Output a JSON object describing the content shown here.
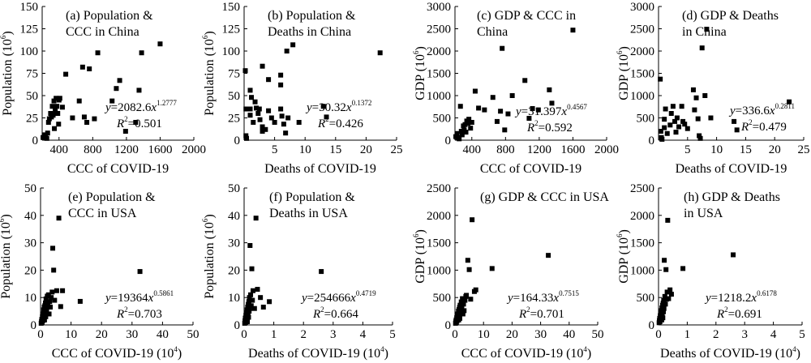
{
  "chart_data": [
    {
      "type": "scatter",
      "title_lines": [
        "(a) Population &",
        "CCC in China"
      ],
      "xlabel": "CCC of COVID-19",
      "ylabel_main": "Population (10",
      "ylabel_exp": "6",
      "ylabel_tail": ")",
      "xlim": [
        200,
        2000
      ],
      "ylim": [
        0,
        150
      ],
      "xticks": [
        400,
        800,
        1200,
        1600,
        2000
      ],
      "yticks": [
        0,
        25,
        50,
        75,
        100,
        125,
        150
      ],
      "equation": {
        "lhs": "y",
        "coef": "=2082.6",
        "var": "x",
        "exp": "1.2777"
      },
      "r2": {
        "label": "R",
        "exp": "2",
        "value": "=0.501"
      },
      "points": [
        [
          210,
          3
        ],
        [
          225,
          6
        ],
        [
          240,
          5
        ],
        [
          255,
          2
        ],
        [
          265,
          8
        ],
        [
          275,
          20
        ],
        [
          285,
          24
        ],
        [
          300,
          30
        ],
        [
          310,
          26
        ],
        [
          320,
          38
        ],
        [
          330,
          28
        ],
        [
          340,
          44
        ],
        [
          345,
          13
        ],
        [
          355,
          33
        ],
        [
          365,
          47
        ],
        [
          375,
          38
        ],
        [
          385,
          30
        ],
        [
          395,
          18
        ],
        [
          400,
          45
        ],
        [
          410,
          47
        ],
        [
          440,
          37
        ],
        [
          480,
          74
        ],
        [
          560,
          25
        ],
        [
          640,
          44
        ],
        [
          680,
          82
        ],
        [
          700,
          26
        ],
        [
          730,
          20
        ],
        [
          760,
          80
        ],
        [
          820,
          24
        ],
        [
          860,
          98
        ],
        [
          1030,
          44
        ],
        [
          1080,
          58
        ],
        [
          1120,
          67
        ],
        [
          1190,
          10
        ],
        [
          1310,
          20
        ],
        [
          1350,
          56
        ],
        [
          1380,
          98
        ],
        [
          1600,
          108
        ]
      ]
    },
    {
      "type": "scatter",
      "title_lines": [
        "(b) Population &",
        "Deaths in China"
      ],
      "xlabel": "Deaths of COVID-19",
      "ylabel_main": "Population (10",
      "ylabel_exp": "6",
      "ylabel_tail": ")",
      "xlim": [
        0,
        25
      ],
      "ylim": [
        0,
        150
      ],
      "xticks": [
        5,
        10,
        15,
        20,
        25
      ],
      "yticks": [
        0,
        25,
        50,
        75,
        100,
        125,
        150
      ],
      "equation": {
        "lhs": "y",
        "coef": "=30.32",
        "var": "x",
        "exp": "0.1372"
      },
      "r2": {
        "label": "R",
        "exp": "2",
        "value": "=0.426"
      },
      "points": [
        [
          0.2,
          78
        ],
        [
          0.3,
          35
        ],
        [
          0.3,
          5
        ],
        [
          0.4,
          2
        ],
        [
          1,
          56
        ],
        [
          1,
          35
        ],
        [
          1,
          28
        ],
        [
          1.2,
          48
        ],
        [
          1.5,
          20
        ],
        [
          1.8,
          43
        ],
        [
          2,
          36
        ],
        [
          2.3,
          30
        ],
        [
          2.5,
          35
        ],
        [
          2.6,
          23
        ],
        [
          3,
          83
        ],
        [
          3,
          15
        ],
        [
          3,
          10
        ],
        [
          3.5,
          12
        ],
        [
          4,
          68
        ],
        [
          4,
          33
        ],
        [
          4.5,
          25
        ],
        [
          5,
          20
        ],
        [
          6,
          73
        ],
        [
          6,
          62
        ],
        [
          6,
          35
        ],
        [
          6.2,
          27
        ],
        [
          6.5,
          18
        ],
        [
          6.8,
          8
        ],
        [
          7,
          100
        ],
        [
          7.2,
          25
        ],
        [
          8,
          107
        ],
        [
          9,
          20
        ],
        [
          13,
          38
        ],
        [
          13.5,
          26
        ],
        [
          22.3,
          98
        ]
      ]
    },
    {
      "type": "scatter",
      "title_lines": [
        "(c) GDP & CCC in",
        "China"
      ],
      "xlabel": "CCC of COVID-19",
      "ylabel_main": "GDP (10",
      "ylabel_exp": "6",
      "ylabel_tail": ")",
      "xlim": [
        200,
        2000
      ],
      "ylim": [
        0,
        3000
      ],
      "xticks": [
        400,
        800,
        1200,
        1600,
        2000
      ],
      "yticks": [
        0,
        500,
        1000,
        1500,
        2000,
        2500,
        3000
      ],
      "equation": {
        "lhs": "y",
        "coef": "=31.397",
        "var": "x",
        "exp": "0.4567"
      },
      "r2": {
        "label": "R",
        "exp": "2",
        "value": "=0.592"
      },
      "points": [
        [
          210,
          80
        ],
        [
          225,
          150
        ],
        [
          235,
          60
        ],
        [
          250,
          30
        ],
        [
          265,
          760
        ],
        [
          275,
          200
        ],
        [
          285,
          120
        ],
        [
          300,
          320
        ],
        [
          310,
          230
        ],
        [
          320,
          350
        ],
        [
          330,
          180
        ],
        [
          340,
          430
        ],
        [
          355,
          380
        ],
        [
          365,
          470
        ],
        [
          385,
          270
        ],
        [
          400,
          400
        ],
        [
          440,
          1100
        ],
        [
          480,
          720
        ],
        [
          550,
          680
        ],
        [
          650,
          960
        ],
        [
          700,
          420
        ],
        [
          740,
          650
        ],
        [
          760,
          2060
        ],
        [
          790,
          230
        ],
        [
          830,
          590
        ],
        [
          880,
          1000
        ],
        [
          1030,
          1340
        ],
        [
          1080,
          490
        ],
        [
          1120,
          710
        ],
        [
          1190,
          680
        ],
        [
          1320,
          1130
        ],
        [
          1350,
          830
        ],
        [
          1600,
          2470
        ]
      ]
    },
    {
      "type": "scatter",
      "title_lines": [
        "(d) GDP & Deaths",
        "in China"
      ],
      "xlabel": "Deaths of COVID-19",
      "ylabel_main": "GDP (10",
      "ylabel_exp": "6",
      "ylabel_tail": ")",
      "xlim": [
        0,
        25
      ],
      "ylim": [
        0,
        3000
      ],
      "xticks": [
        5,
        10,
        15,
        20,
        25
      ],
      "yticks": [
        0,
        500,
        1000,
        1500,
        2000,
        2500,
        3000
      ],
      "equation": {
        "lhs": "y",
        "coef": "=336.6",
        "var": "x",
        "exp": "0.2811"
      },
      "r2": {
        "label": "R",
        "exp": "2",
        "value": "=0.479"
      },
      "points": [
        [
          0.3,
          1370
        ],
        [
          0.4,
          200
        ],
        [
          0.5,
          60
        ],
        [
          0.6,
          20
        ],
        [
          1,
          470
        ],
        [
          1,
          280
        ],
        [
          1.2,
          700
        ],
        [
          1.5,
          150
        ],
        [
          2,
          340
        ],
        [
          2.2,
          600
        ],
        [
          2.5,
          760
        ],
        [
          2.8,
          420
        ],
        [
          3,
          180
        ],
        [
          3.2,
          500
        ],
        [
          3.5,
          300
        ],
        [
          4,
          760
        ],
        [
          4.2,
          420
        ],
        [
          4.5,
          360
        ],
        [
          5,
          260
        ],
        [
          6,
          1130
        ],
        [
          6.2,
          680
        ],
        [
          6.5,
          950
        ],
        [
          6.8,
          480
        ],
        [
          7,
          100
        ],
        [
          7.2,
          40
        ],
        [
          7.5,
          2070
        ],
        [
          8,
          1000
        ],
        [
          8.3,
          2490
        ],
        [
          9,
          500
        ],
        [
          13,
          420
        ],
        [
          13.5,
          230
        ],
        [
          22.5,
          860
        ]
      ]
    },
    {
      "type": "scatter",
      "title_lines": [
        "(e) Population &",
        "CCC in USA"
      ],
      "xlabel_main": "CCC of COVID-19 (10",
      "xlabel_exp": "4",
      "xlabel_tail": ")",
      "ylabel_main": "Population (10",
      "ylabel_exp": "6",
      "ylabel_tail": ")",
      "xlim": [
        0,
        50
      ],
      "ylim": [
        0,
        50
      ],
      "xticks": [
        0,
        10,
        20,
        30,
        40,
        50
      ],
      "yticks": [
        0,
        10,
        20,
        30,
        40,
        50
      ],
      "equation": {
        "lhs": "y",
        "coef": "=19364",
        "var": "x",
        "exp": "0.5861"
      },
      "r2": {
        "label": "R",
        "exp": "2",
        "value": "=0.703"
      },
      "points": [
        [
          0.2,
          0.6
        ],
        [
          0.3,
          1.2
        ],
        [
          0.4,
          2
        ],
        [
          0.5,
          0.8
        ],
        [
          0.6,
          3
        ],
        [
          0.7,
          1.5
        ],
        [
          0.8,
          4
        ],
        [
          0.9,
          2.5
        ],
        [
          1,
          5.5
        ],
        [
          1.1,
          3.2
        ],
        [
          1.2,
          6.5
        ],
        [
          1.3,
          1.8
        ],
        [
          1.4,
          7
        ],
        [
          1.5,
          4.5
        ],
        [
          1.6,
          8
        ],
        [
          1.7,
          3
        ],
        [
          1.8,
          9.5
        ],
        [
          1.9,
          6
        ],
        [
          2,
          5
        ],
        [
          2.2,
          10.5
        ],
        [
          2.4,
          7.5
        ],
        [
          2.6,
          11
        ],
        [
          2.8,
          4
        ],
        [
          3,
          8.5
        ],
        [
          3.2,
          6.5
        ],
        [
          3.5,
          10
        ],
        [
          3.8,
          12
        ],
        [
          4,
          28
        ],
        [
          4.3,
          20
        ],
        [
          4.6,
          9
        ],
        [
          5.3,
          12.5
        ],
        [
          6,
          39
        ],
        [
          6.6,
          6.7
        ],
        [
          7.2,
          12.5
        ],
        [
          13,
          8.6
        ],
        [
          32.6,
          19.5
        ]
      ]
    },
    {
      "type": "scatter",
      "title_lines": [
        "(f) Population &",
        "Deaths in USA"
      ],
      "xlabel_main": "Deaths of COVID-19 (10",
      "xlabel_exp": "4",
      "xlabel_tail": ")",
      "ylabel_main": "Population (10",
      "ylabel_exp": "6",
      "ylabel_tail": ")",
      "xlim": [
        0,
        5
      ],
      "ylim": [
        0,
        50
      ],
      "xticks": [
        0,
        1,
        2,
        3,
        4,
        5
      ],
      "yticks": [
        0,
        10,
        20,
        30,
        40,
        50
      ],
      "equation": {
        "lhs": "y",
        "coef": "=254666",
        "var": "x",
        "exp": "0.4719"
      },
      "r2": {
        "label": "R",
        "exp": "2",
        "value": "=0.664"
      },
      "points": [
        [
          0.02,
          0.6
        ],
        [
          0.03,
          1.5
        ],
        [
          0.04,
          2.5
        ],
        [
          0.05,
          1
        ],
        [
          0.06,
          3.5
        ],
        [
          0.07,
          2
        ],
        [
          0.08,
          4.5
        ],
        [
          0.09,
          3
        ],
        [
          0.1,
          5.5
        ],
        [
          0.11,
          1.2
        ],
        [
          0.12,
          6.5
        ],
        [
          0.13,
          4
        ],
        [
          0.14,
          7.5
        ],
        [
          0.15,
          2.8
        ],
        [
          0.16,
          8.5
        ],
        [
          0.17,
          5
        ],
        [
          0.18,
          10
        ],
        [
          0.19,
          6
        ],
        [
          0.2,
          29
        ],
        [
          0.22,
          11
        ],
        [
          0.24,
          7
        ],
        [
          0.26,
          20.5
        ],
        [
          0.28,
          9
        ],
        [
          0.3,
          12.5
        ],
        [
          0.35,
          6
        ],
        [
          0.4,
          39
        ],
        [
          0.45,
          13
        ],
        [
          0.55,
          10
        ],
        [
          0.65,
          6.5
        ],
        [
          0.85,
          8.5
        ],
        [
          2.6,
          19.5
        ]
      ]
    },
    {
      "type": "scatter",
      "title_lines": [
        "(g) GDP & CCC in USA"
      ],
      "xlabel_main": "CCC of COVID-19 (10",
      "xlabel_exp": "4",
      "xlabel_tail": ")",
      "ylabel_main": "GDP (10",
      "ylabel_exp": "6",
      "ylabel_tail": ")",
      "xlim": [
        0,
        50
      ],
      "ylim": [
        0,
        2500
      ],
      "xticks": [
        0,
        10,
        20,
        30,
        40,
        50
      ],
      "yticks": [
        0,
        500,
        1000,
        1500,
        2000,
        2500
      ],
      "equation": {
        "lhs": "y",
        "coef": "=164.33",
        "var": "x",
        "exp": "0.7515"
      },
      "r2": {
        "label": "R",
        "exp": "2",
        "value": "=0.701"
      },
      "points": [
        [
          0.2,
          30
        ],
        [
          0.3,
          60
        ],
        [
          0.4,
          90
        ],
        [
          0.5,
          40
        ],
        [
          0.6,
          130
        ],
        [
          0.7,
          70
        ],
        [
          0.8,
          170
        ],
        [
          0.9,
          110
        ],
        [
          1,
          200
        ],
        [
          1.1,
          150
        ],
        [
          1.2,
          250
        ],
        [
          1.3,
          90
        ],
        [
          1.4,
          280
        ],
        [
          1.5,
          190
        ],
        [
          1.6,
          320
        ],
        [
          1.7,
          120
        ],
        [
          1.8,
          360
        ],
        [
          1.9,
          230
        ],
        [
          2,
          290
        ],
        [
          2.2,
          420
        ],
        [
          2.4,
          330
        ],
        [
          2.6,
          480
        ],
        [
          2.8,
          200
        ],
        [
          3,
          380
        ],
        [
          3.2,
          260
        ],
        [
          3.5,
          450
        ],
        [
          3.8,
          520
        ],
        [
          4,
          540
        ],
        [
          4.5,
          1180
        ],
        [
          5,
          1010
        ],
        [
          5.5,
          470
        ],
        [
          6,
          1920
        ],
        [
          6.8,
          610
        ],
        [
          7.3,
          640
        ],
        [
          13,
          1030
        ],
        [
          32.7,
          1270
        ]
      ]
    },
    {
      "type": "scatter",
      "title_lines": [
        "(h) GDP & Deaths",
        "in USA"
      ],
      "xlabel_main": "Deaths of COVID-19 (10",
      "xlabel_exp": "4",
      "xlabel_tail": ")",
      "ylabel_main": "GDP (10",
      "ylabel_exp": "6",
      "ylabel_tail": ")",
      "xlim": [
        0,
        5
      ],
      "ylim": [
        0,
        2500
      ],
      "xticks": [
        0,
        1,
        2,
        3,
        4,
        5
      ],
      "yticks": [
        0,
        500,
        1000,
        1500,
        2000,
        2500
      ],
      "equation": {
        "lhs": "y",
        "coef": "=1218.2",
        "var": "x",
        "exp": "0.6178"
      },
      "r2": {
        "label": "R",
        "exp": "2",
        "value": "=0.691"
      },
      "points": [
        [
          0.02,
          40
        ],
        [
          0.03,
          80
        ],
        [
          0.04,
          120
        ],
        [
          0.05,
          60
        ],
        [
          0.06,
          170
        ],
        [
          0.07,
          100
        ],
        [
          0.08,
          220
        ],
        [
          0.09,
          140
        ],
        [
          0.1,
          260
        ],
        [
          0.11,
          90
        ],
        [
          0.12,
          310
        ],
        [
          0.13,
          190
        ],
        [
          0.14,
          360
        ],
        [
          0.15,
          130
        ],
        [
          0.16,
          400
        ],
        [
          0.17,
          240
        ],
        [
          0.18,
          450
        ],
        [
          0.19,
          300
        ],
        [
          0.2,
          1180
        ],
        [
          0.22,
          520
        ],
        [
          0.24,
          380
        ],
        [
          0.26,
          1010
        ],
        [
          0.28,
          470
        ],
        [
          0.3,
          600
        ],
        [
          0.32,
          1910
        ],
        [
          0.35,
          480
        ],
        [
          0.4,
          640
        ],
        [
          0.45,
          560
        ],
        [
          0.85,
          1030
        ],
        [
          2.6,
          1280
        ]
      ]
    }
  ]
}
